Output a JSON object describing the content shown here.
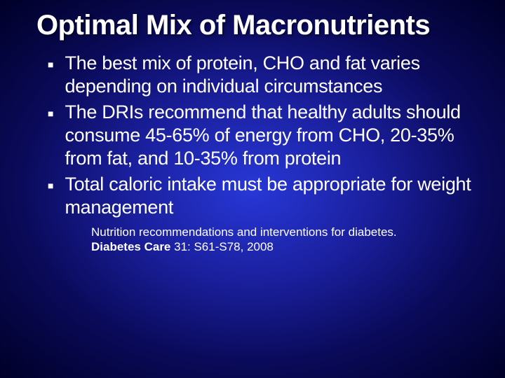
{
  "slide": {
    "background": {
      "gradient_center": "#2838d8",
      "gradient_mid": "#1a1f9c",
      "gradient_outer": "#0a0a5a",
      "gradient_edge": "#000028"
    },
    "title": {
      "text": "Optimal Mix of Macronutrients",
      "font_family": "Verdana",
      "font_size_pt": 40,
      "font_weight": "bold",
      "color": "#ffffff"
    },
    "bullets": {
      "marker": "■",
      "marker_color": "#ffffff",
      "font_family": "Verdana",
      "font_size_pt": 27,
      "color": "#ffffff",
      "items": [
        {
          "text": "The best mix of protein, CHO and fat varies depending on individual circumstances"
        },
        {
          "text": "The DRIs recommend that healthy adults should consume 45-65% of energy from CHO, 20-35% from fat, and 10-35% from protein"
        },
        {
          "text": "Total caloric intake must be appropriate for weight management"
        }
      ]
    },
    "citation": {
      "font_family": "Arial",
      "font_size_pt": 17,
      "color": "#ffffff",
      "line1": "Nutrition recommendations and interventions for diabetes.",
      "line2_bold": "Diabetes Care",
      "line2_rest": " 31: S61-S78, 2008"
    }
  }
}
